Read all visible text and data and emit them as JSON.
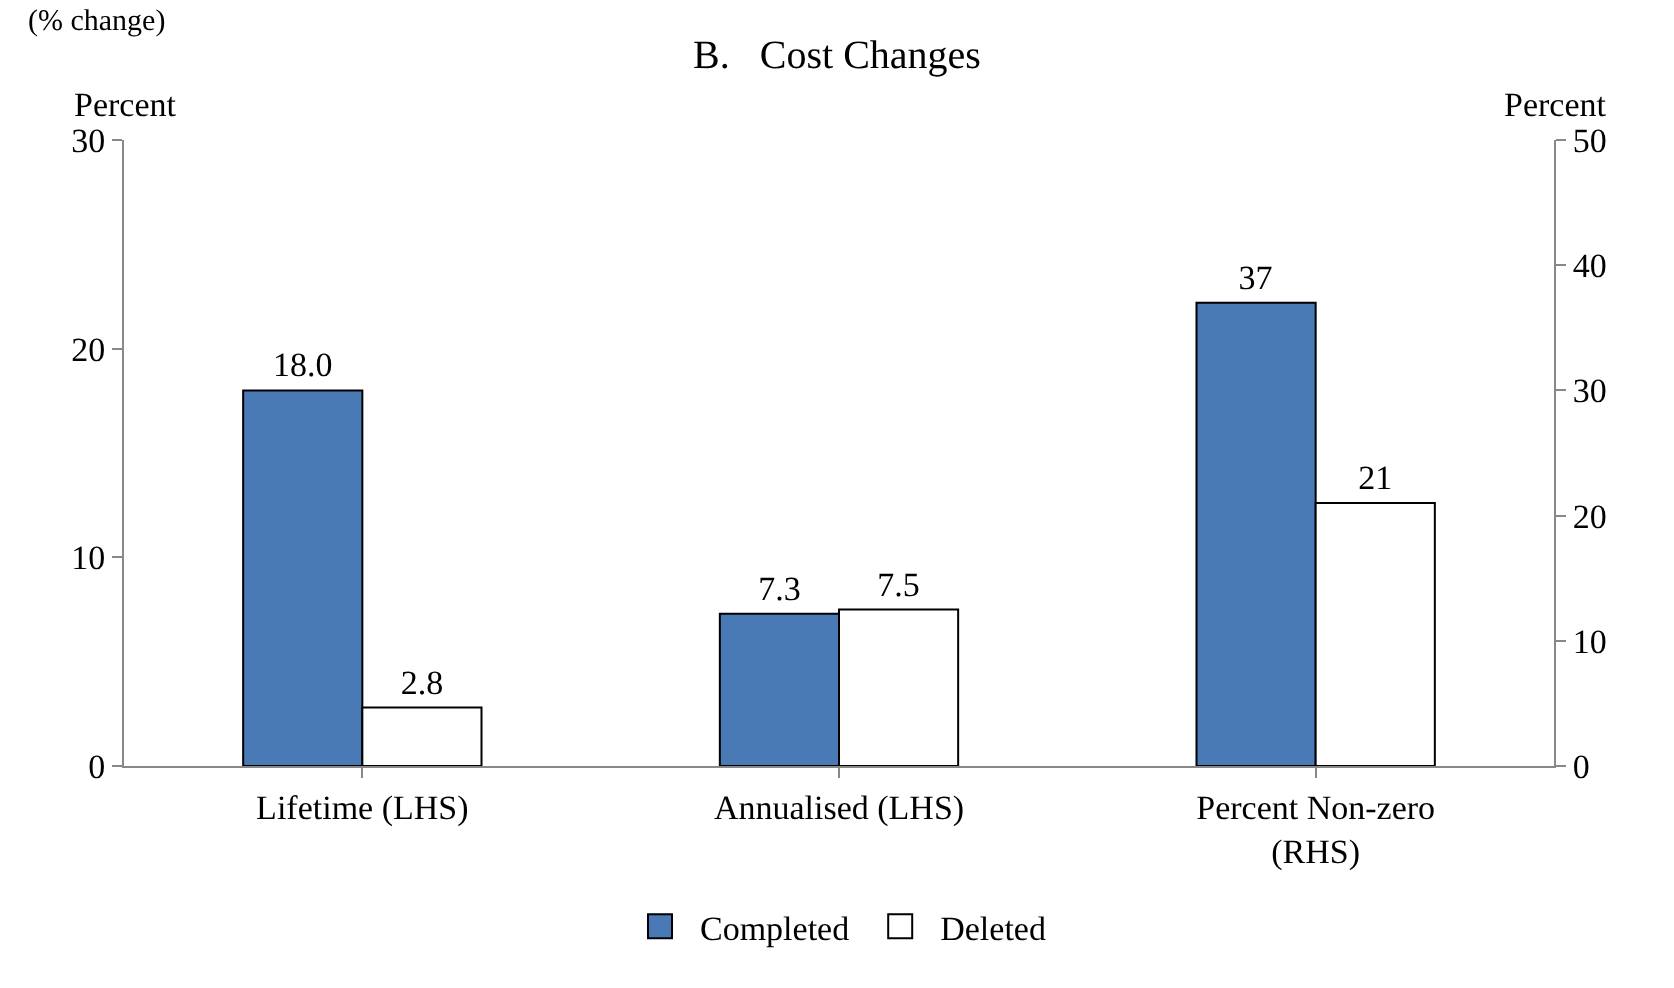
{
  "chart_data": {
    "type": "bar",
    "title": "B.   Cost Changes",
    "categories": [
      "Lifetime (LHS)",
      "Annualised (LHS)",
      "Percent Non-zero\n(RHS)"
    ],
    "series": [
      {
        "name": "Completed",
        "color": "#4a7ab5",
        "values": [
          18.0,
          7.3,
          null
        ],
        "value_labels": [
          "18.0",
          "7.3",
          null
        ]
      },
      {
        "name": "Deleted",
        "color": "#ffffff",
        "values": [
          2.8,
          7.5,
          null
        ],
        "value_labels": [
          "2.8",
          "7.5",
          null
        ]
      },
      {
        "color": "#4a7ab5",
        "axis": "y2",
        "values": [
          null,
          null,
          37
        ],
        "value_labels": [
          null,
          null,
          "37"
        ]
      },
      {
        "color": "#ffffff",
        "axis": "y2",
        "values": [
          null,
          null,
          21
        ],
        "value_labels": [
          null,
          null,
          "21"
        ]
      }
    ],
    "ylabel": "Percent",
    "y2label": "Percent",
    "ylim": [
      0,
      30
    ],
    "yticks": [
      0,
      10,
      20,
      30
    ],
    "y2lim": [
      0,
      50
    ],
    "y2ticks": [
      0,
      10,
      20,
      30,
      40,
      50
    ],
    "annotations": [
      "(% change)"
    ],
    "legend": "bottom"
  }
}
